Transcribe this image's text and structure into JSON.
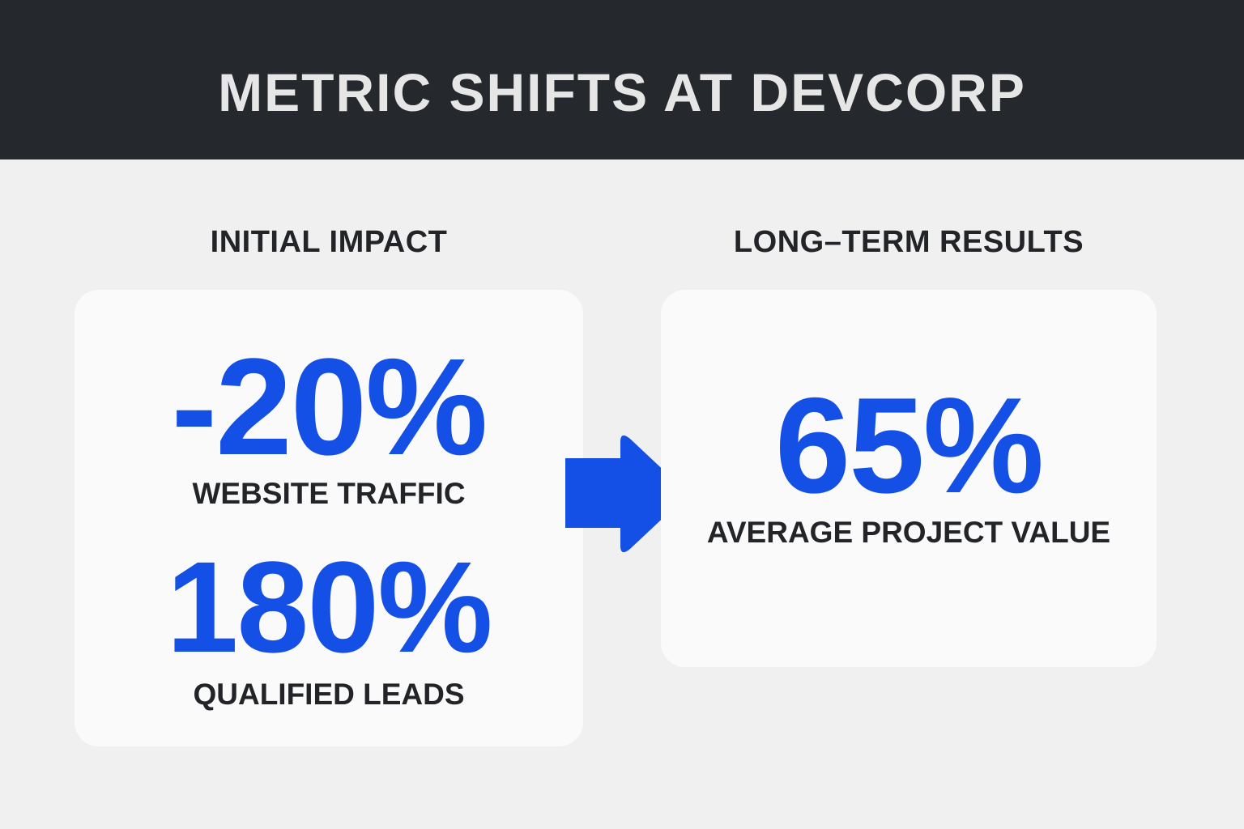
{
  "header": {
    "title": "METRIC SHIFTS AT DEVCORP"
  },
  "initial": {
    "heading": "INITIAL IMPACT",
    "metrics": [
      {
        "value": "-20%",
        "label": "WEBSITE TRAFFIC"
      },
      {
        "value": "180%",
        "label": "QUALIFIED LEADS"
      }
    ]
  },
  "long_term": {
    "heading": "LONG–TERM RESULTS",
    "metrics": [
      {
        "value": "65%",
        "label": "AVERAGE PROJECT VALUE"
      }
    ]
  },
  "colors": {
    "accent": "#1450e6",
    "header_bg": "#25282c",
    "text_dark": "#222428",
    "background": "#f0f0f0",
    "card": "#fafafa"
  },
  "icons": {
    "transition": "right-arrow-icon"
  }
}
